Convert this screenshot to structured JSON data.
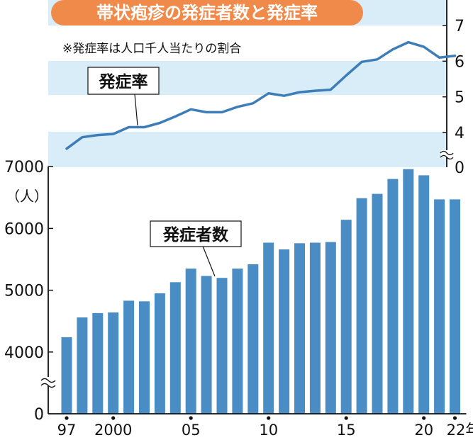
{
  "title": "帯状疱疹の発症者数と発症率",
  "note": "※発症率は人口千人当たりの割合",
  "colors": {
    "title_bg": "#f08a4b",
    "band": "#d9edf9",
    "line": "#3d7db8",
    "bar": "#4a8cc4",
    "axis": "#111111"
  },
  "chart_data": [
    {
      "type": "line",
      "ylim": [
        3.4,
        7.5
      ],
      "y_ticks": [
        "7",
        "6",
        "5",
        "4",
        "0"
      ],
      "axis_break": true,
      "callout": "発症率",
      "x": [
        1997,
        1998,
        1999,
        2000,
        2001,
        2002,
        2003,
        2004,
        2005,
        2006,
        2007,
        2008,
        2009,
        2010,
        2011,
        2012,
        2013,
        2014,
        2015,
        2016,
        2017,
        2018,
        2019,
        2020,
        2021,
        2022
      ],
      "values": [
        3.55,
        3.87,
        3.93,
        3.96,
        4.15,
        4.15,
        4.27,
        4.45,
        4.65,
        4.57,
        4.57,
        4.72,
        4.82,
        5.1,
        5.03,
        5.13,
        5.17,
        5.2,
        5.6,
        5.98,
        6.05,
        6.33,
        6.53,
        6.4,
        6.1,
        6.15
      ]
    },
    {
      "type": "bar",
      "ylabel": "（人）",
      "ylim": [
        0,
        7000
      ],
      "y_ticks": [
        "7000",
        "6000",
        "5000",
        "4000",
        "0"
      ],
      "axis_break": true,
      "callout": "発症者数",
      "x_tick_labels": [
        "97",
        "2000",
        "05",
        "10",
        "15",
        "20",
        "22年"
      ],
      "x": [
        1997,
        1998,
        1999,
        2000,
        2001,
        2002,
        2003,
        2004,
        2005,
        2006,
        2007,
        2008,
        2009,
        2010,
        2011,
        2012,
        2013,
        2014,
        2015,
        2016,
        2017,
        2018,
        2019,
        2020,
        2021,
        2022
      ],
      "values": [
        4240,
        4560,
        4630,
        4640,
        4830,
        4820,
        4950,
        5130,
        5350,
        5230,
        5200,
        5350,
        5420,
        5770,
        5660,
        5760,
        5770,
        5780,
        6140,
        6490,
        6560,
        6800,
        6960,
        6860,
        6470,
        6470
      ]
    }
  ]
}
